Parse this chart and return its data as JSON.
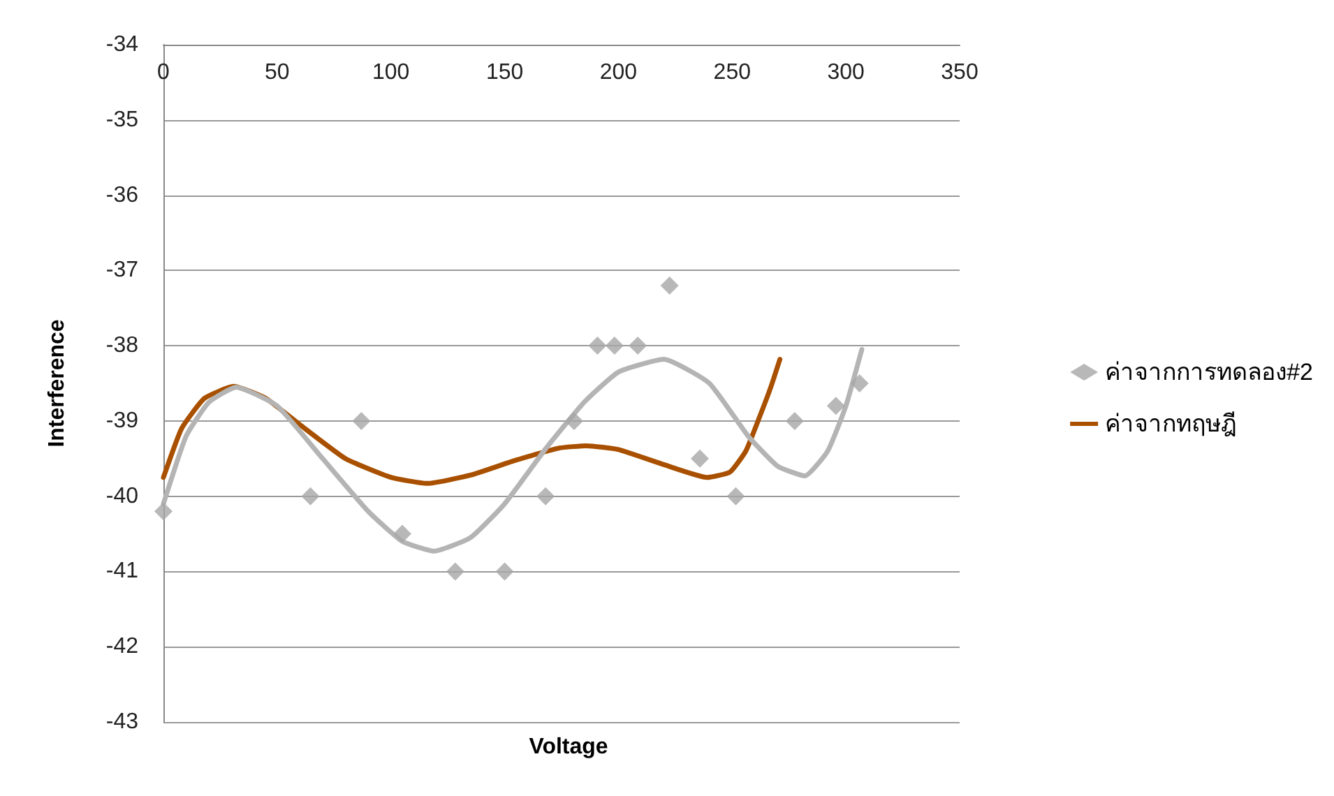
{
  "chart_data": {
    "type": "scatter",
    "xlabel": "Voltage",
    "ylabel": "Interference",
    "xlim": [
      0,
      350
    ],
    "xticks": [
      0,
      50,
      100,
      150,
      200,
      250,
      300,
      350
    ],
    "ylim": [
      -43,
      -34
    ],
    "yticks": [
      -43,
      -42,
      -41,
      -40,
      -39,
      -38,
      -37,
      -36,
      -35,
      -34
    ],
    "grid": "y",
    "legend": "right",
    "series": [
      {
        "name": "ค่าจากการทดลอง#2",
        "marker": "diamond",
        "color": "#a6a6a6",
        "x": [
          0,
          64.6,
          87,
          105,
          128.3,
          150,
          168,
          180.5,
          190.8,
          198.3,
          208.5,
          222.5,
          235.8,
          251.6,
          277.5,
          295.6,
          306
        ],
        "values": [
          -40.2,
          -40,
          -39,
          -40.5,
          -41,
          -41,
          -40,
          -39,
          -38,
          -38,
          -38,
          -37.2,
          -39.5,
          -40,
          -39,
          -38.8,
          -38.5
        ]
      },
      {
        "name": "ค่าจากทฤษฎี",
        "type": "line",
        "marker": "none",
        "line_style": "solid",
        "color": "#a85000",
        "x": [
          0,
          8,
          18,
          31,
          45,
          60,
          80,
          100,
          116,
          135,
          155,
          174,
          186,
          200,
          220,
          239,
          249,
          256,
          262,
          267,
          271
        ],
        "values": [
          -39.75,
          -39.1,
          -38.7,
          -38.54,
          -38.7,
          -39.05,
          -39.5,
          -39.75,
          -39.83,
          -39.72,
          -39.52,
          -39.36,
          -39.33,
          -39.38,
          -39.58,
          -39.75,
          -39.68,
          -39.4,
          -38.95,
          -38.55,
          -38.18
        ]
      },
      {
        "type": "line",
        "marker": "none",
        "line_style": "solid",
        "color": "#b4b4b4",
        "x": [
          0,
          10,
          20,
          32,
          50,
          70,
          90,
          105,
          119,
          135,
          150,
          168,
          185,
          200,
          220,
          240,
          257,
          270,
          282,
          292,
          300,
          307
        ],
        "values": [
          -40.1,
          -39.2,
          -38.75,
          -38.55,
          -38.8,
          -39.5,
          -40.2,
          -40.6,
          -40.73,
          -40.55,
          -40.1,
          -39.37,
          -38.75,
          -38.35,
          -38.18,
          -38.5,
          -39.2,
          -39.6,
          -39.73,
          -39.4,
          -38.8,
          -38.05
        ]
      }
    ]
  }
}
